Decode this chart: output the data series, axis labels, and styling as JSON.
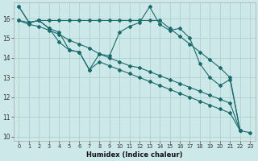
{
  "xlabel": "Humidex (Indice chaleur)",
  "bg_color": "#cce8e8",
  "grid_color": "#aacccc",
  "line_color": "#1a6b6b",
  "xlim": [
    -0.5,
    23.5
  ],
  "ylim": [
    9.8,
    16.8
  ],
  "yticks": [
    10,
    11,
    12,
    13,
    14,
    15,
    16
  ],
  "xticks": [
    0,
    1,
    2,
    3,
    4,
    5,
    6,
    7,
    8,
    9,
    10,
    11,
    12,
    13,
    14,
    15,
    16,
    17,
    18,
    19,
    20,
    21,
    22,
    23
  ],
  "line1_y": [
    16.6,
    15.8,
    15.9,
    15.5,
    15.3,
    14.4,
    14.3,
    13.4,
    14.2,
    14.1,
    15.3,
    15.6,
    15.8,
    16.6,
    15.7,
    15.4,
    15.5,
    15.0,
    13.7,
    13.0,
    12.6,
    12.9,
    10.3,
    10.2
  ],
  "line2_y": [
    15.9,
    15.8,
    15.9,
    15.9,
    15.9,
    15.9,
    15.9,
    15.9,
    15.9,
    15.9,
    15.9,
    15.9,
    15.9,
    15.9,
    15.9,
    15.5,
    15.1,
    14.7,
    14.3,
    13.9,
    13.5,
    13.0,
    10.3,
    null
  ],
  "line3_y": [
    15.9,
    15.7,
    15.6,
    15.4,
    15.2,
    14.9,
    14.7,
    14.5,
    14.2,
    14.0,
    13.8,
    13.6,
    13.5,
    13.3,
    13.1,
    12.9,
    12.7,
    12.5,
    12.3,
    12.1,
    11.9,
    11.7,
    10.3,
    null
  ],
  "line4_y": [
    16.6,
    15.8,
    15.9,
    15.5,
    14.8,
    14.4,
    14.3,
    13.4,
    13.8,
    13.6,
    13.4,
    13.2,
    13.0,
    12.8,
    12.6,
    12.4,
    12.2,
    12.0,
    11.8,
    11.6,
    11.4,
    11.2,
    10.3,
    null
  ]
}
